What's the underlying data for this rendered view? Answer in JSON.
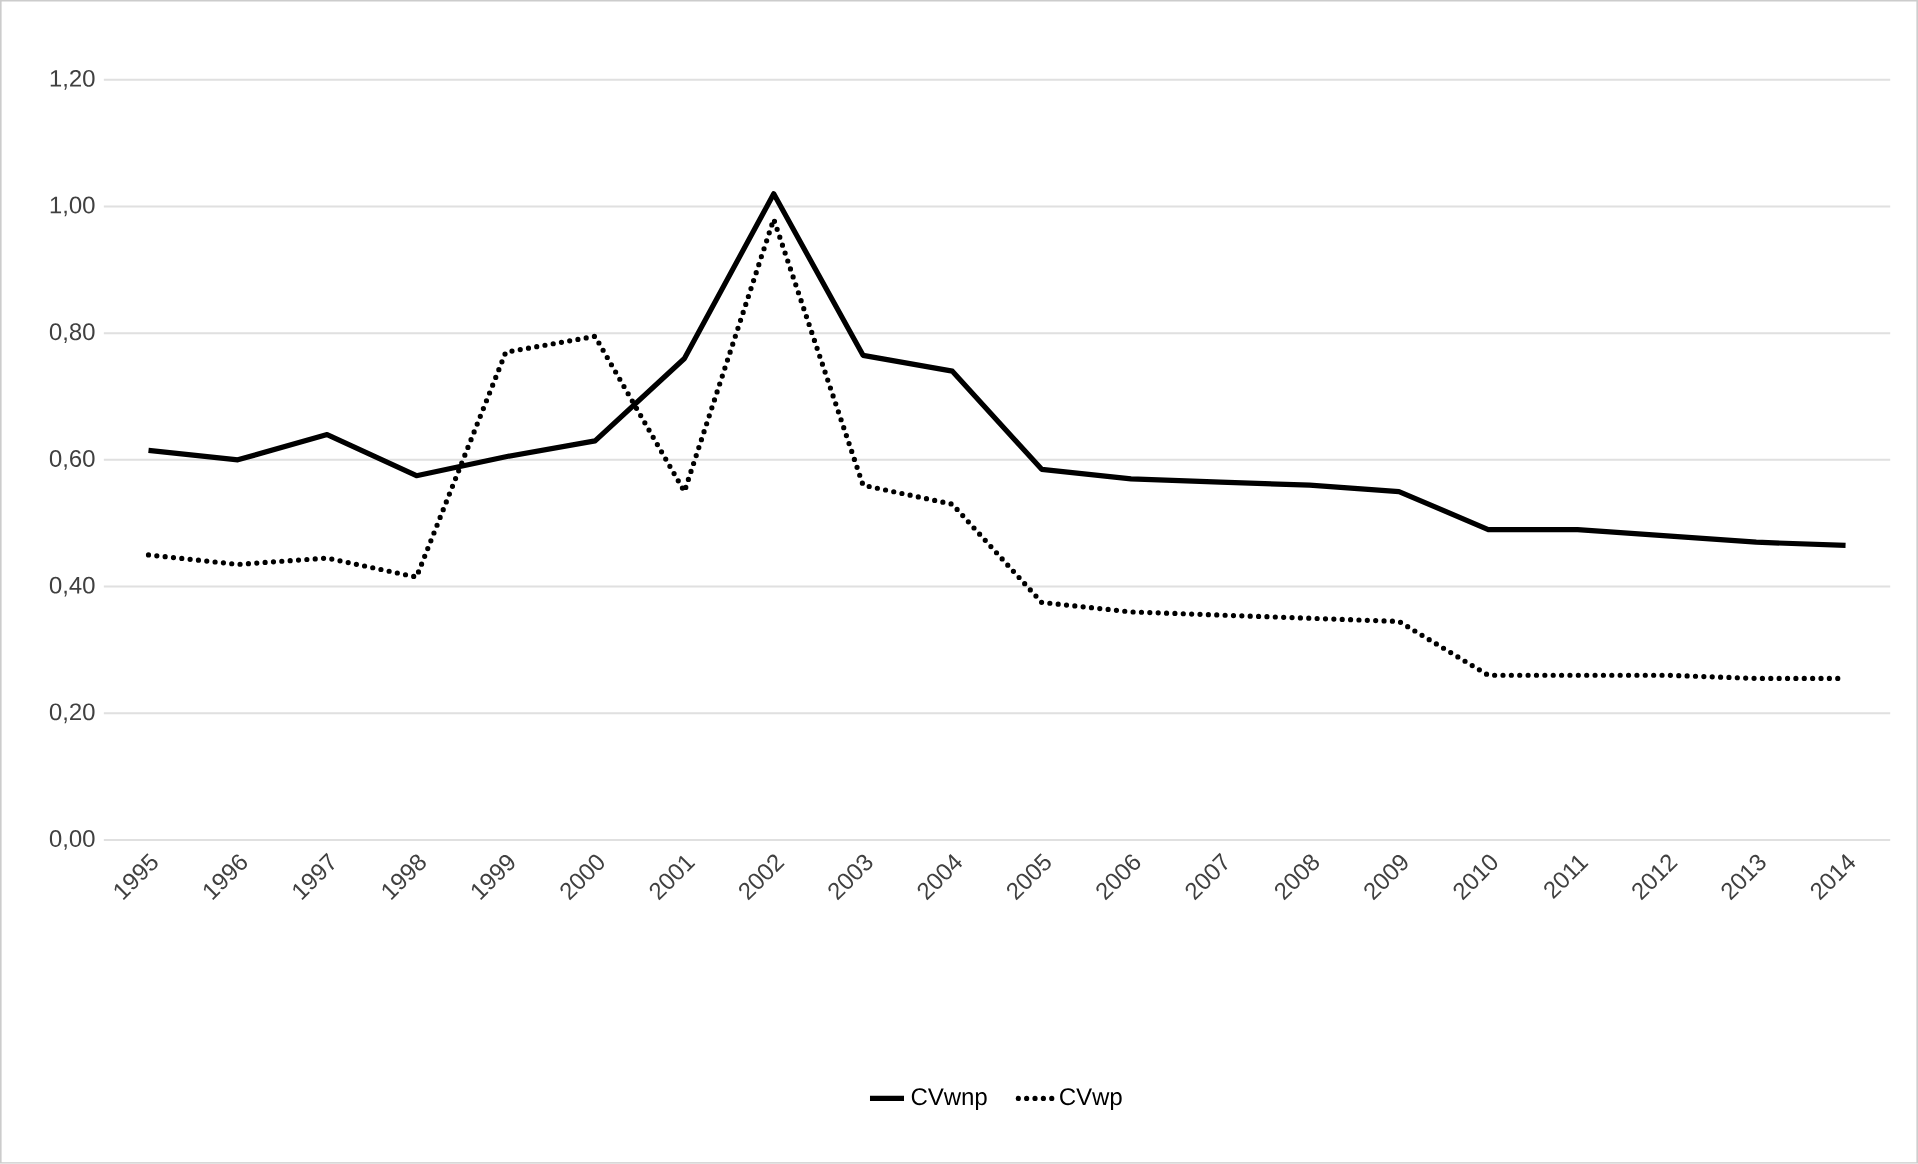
{
  "chart_data": {
    "type": "line",
    "categories": [
      "1995",
      "1996",
      "1997",
      "1998",
      "1999",
      "2000",
      "2001",
      "2002",
      "2003",
      "2004",
      "2005",
      "2006",
      "2007",
      "2008",
      "2009",
      "2010",
      "2011",
      "2012",
      "2013",
      "2014"
    ],
    "series": [
      {
        "name": "CVwnp",
        "color": "#000000",
        "line_style": "solid",
        "values": [
          0.615,
          0.6,
          0.64,
          0.575,
          0.605,
          0.63,
          0.76,
          1.02,
          0.765,
          0.74,
          0.585,
          0.57,
          0.565,
          0.56,
          0.55,
          0.49,
          0.49,
          0.48,
          0.47,
          0.465
        ]
      },
      {
        "name": "CVwp",
        "color": "#000000",
        "line_style": "dotted",
        "values": [
          0.45,
          0.435,
          0.445,
          0.415,
          0.77,
          0.795,
          0.55,
          0.98,
          0.56,
          0.53,
          0.375,
          0.36,
          0.355,
          0.35,
          0.345,
          0.26,
          0.26,
          0.26,
          0.255,
          0.255
        ]
      }
    ],
    "ylim": [
      0,
      1.2
    ],
    "yticks": [
      {
        "value": 0,
        "label": "0,00"
      },
      {
        "value": 0.2,
        "label": "0,20"
      },
      {
        "value": 0.4,
        "label": "0,40"
      },
      {
        "value": 0.6,
        "label": "0,60"
      },
      {
        "value": 0.8,
        "label": "0,80"
      },
      {
        "value": 1.0,
        "label": "1,00"
      },
      {
        "value": 1.2,
        "label": "1,20"
      }
    ],
    "grid": "y",
    "legend": "bottom",
    "marker": "none"
  }
}
